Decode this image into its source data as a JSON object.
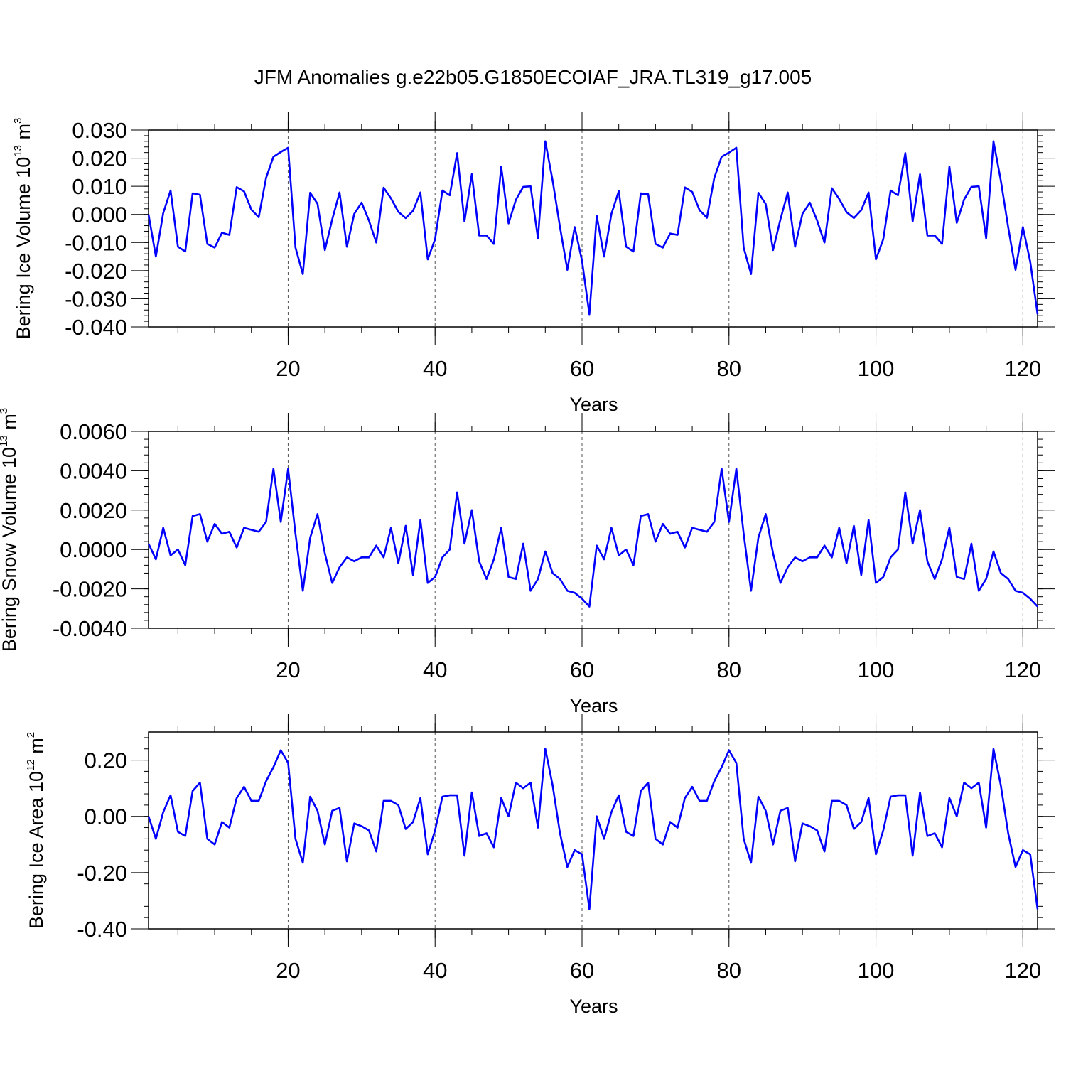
{
  "title": "JFM Anomalies g.e22b05.G1850ECOIAF_JRA.TL319_g17.005",
  "series_color": "#0000ff",
  "chart_data": [
    {
      "type": "line",
      "ylabel": "Bering Ice Volume 10",
      "ylabel_exp": "13",
      "ylabel_unit": " m",
      "ylabel_unit_exp": "3",
      "xlabel": "Years",
      "xlim": [
        1,
        122
      ],
      "ylim": [
        -0.04,
        0.03
      ],
      "yticks": [
        -0.04,
        -0.03,
        -0.02,
        -0.01,
        0.0,
        0.01,
        0.02,
        0.03
      ],
      "ytick_labels": [
        "-0.040",
        "-0.030",
        "-0.020",
        "-0.010",
        "0.000",
        "0.010",
        "0.020",
        "0.030"
      ],
      "xticks": [
        20,
        40,
        60,
        80,
        100,
        120
      ],
      "xtick_labels": [
        "20",
        "40",
        "60",
        "80",
        "100",
        "120"
      ],
      "grid": "vertical dashed at major x ticks",
      "values": [
        0.0,
        -0.015,
        0.0005,
        0.0085,
        -0.0115,
        -0.0132,
        0.0075,
        0.007,
        -0.0105,
        -0.0118,
        -0.0065,
        -0.0073,
        0.0097,
        0.0082,
        0.0017,
        -0.001,
        0.013,
        0.0205,
        0.0222,
        0.0237,
        -0.0118,
        -0.0212,
        0.0077,
        0.0038,
        -0.0127,
        -0.0018,
        0.0078,
        -0.0115,
        0.0002,
        0.0042,
        -0.0022,
        -0.01,
        0.0095,
        0.0057,
        0.0009,
        -0.0013,
        0.0013,
        0.0078,
        -0.016,
        -0.0088,
        0.0085,
        0.0068,
        0.0218,
        -0.0025,
        0.0143,
        -0.0075,
        -0.0075,
        -0.0105,
        0.017,
        -0.0032,
        0.0052,
        0.0098,
        0.01,
        -0.0085,
        0.026,
        0.012,
        -0.0045,
        -0.0197,
        -0.0045,
        -0.0165,
        -0.0355,
        -0.0005,
        -0.015,
        0.0002,
        0.0083,
        -0.0115,
        -0.0132,
        0.0075,
        0.0072,
        -0.0105,
        -0.0118,
        -0.0068,
        -0.0073,
        0.0096,
        0.008,
        0.0015,
        -0.0012,
        0.013,
        0.0205,
        0.022,
        0.0237,
        -0.0118,
        -0.0212,
        0.0077,
        0.0037,
        -0.0127,
        -0.0018,
        0.0078,
        -0.0115,
        0.0002,
        0.0042,
        -0.0022,
        -0.01,
        0.0093,
        0.0055,
        0.0008,
        -0.0013,
        0.0015,
        0.0078,
        -0.016,
        -0.0088,
        0.0085,
        0.0068,
        0.0218,
        -0.0025,
        0.0143,
        -0.0075,
        -0.0075,
        -0.0105,
        0.017,
        -0.003,
        0.0053,
        0.0098,
        0.01,
        -0.0085,
        0.026,
        0.012,
        -0.0045,
        -0.0197,
        -0.0045,
        -0.0168,
        -0.0355
      ]
    },
    {
      "type": "line",
      "ylabel": "Bering Snow Volume 10",
      "ylabel_exp": "13",
      "ylabel_unit": " m",
      "ylabel_unit_exp": "3",
      "xlabel": "Years",
      "xlim": [
        1,
        122
      ],
      "ylim": [
        -0.004,
        0.006
      ],
      "yticks": [
        -0.004,
        -0.002,
        0.0,
        0.002,
        0.004,
        0.006
      ],
      "ytick_labels": [
        "-0.0040",
        "-0.0020",
        "0.0000",
        "0.0020",
        "0.0040",
        "0.0060"
      ],
      "xticks": [
        20,
        40,
        60,
        80,
        100,
        120
      ],
      "xtick_labels": [
        "20",
        "40",
        "60",
        "80",
        "100",
        "120"
      ],
      "grid": "vertical dashed at major x ticks",
      "values": [
        0.0003,
        -0.0005,
        0.0011,
        -0.0003,
        0.0,
        -0.0008,
        0.0017,
        0.0018,
        0.0004,
        0.0013,
        0.0008,
        0.0009,
        0.0001,
        0.0011,
        0.001,
        0.0009,
        0.0014,
        0.0041,
        0.0014,
        0.0041,
        0.0008,
        -0.0021,
        0.0006,
        0.0018,
        -0.0002,
        -0.0017,
        -0.0009,
        -0.0004,
        -0.0006,
        -0.0004,
        -0.0004,
        0.0002,
        -0.0004,
        0.0011,
        -0.0007,
        0.0012,
        -0.0013,
        0.0015,
        -0.0017,
        -0.0014,
        -0.0004,
        0.0,
        0.0029,
        0.0003,
        0.002,
        -0.0006,
        -0.0015,
        -0.0005,
        0.0011,
        -0.0014,
        -0.0015,
        0.0003,
        -0.0021,
        -0.0015,
        -0.0001,
        -0.0012,
        -0.0015,
        -0.0021,
        -0.0022,
        -0.0025,
        -0.0029,
        0.0002,
        -0.0005,
        0.0011,
        -0.0003,
        0.0,
        -0.0008,
        0.0017,
        0.0018,
        0.0004,
        0.0013,
        0.0008,
        0.0009,
        0.0001,
        0.0011,
        0.001,
        0.0009,
        0.0014,
        0.0041,
        0.0014,
        0.0041,
        0.0008,
        -0.0021,
        0.0006,
        0.0018,
        -0.0002,
        -0.0017,
        -0.0009,
        -0.0004,
        -0.0006,
        -0.0004,
        -0.0004,
        0.0002,
        -0.0004,
        0.0011,
        -0.0007,
        0.0012,
        -0.0013,
        0.0015,
        -0.0017,
        -0.0014,
        -0.0004,
        0.0,
        0.0029,
        0.0003,
        0.002,
        -0.0006,
        -0.0015,
        -0.0005,
        0.0011,
        -0.0014,
        -0.0015,
        0.0003,
        -0.0021,
        -0.0015,
        -0.0001,
        -0.0012,
        -0.0015,
        -0.0021,
        -0.0022,
        -0.0025,
        -0.0029
      ]
    },
    {
      "type": "line",
      "ylabel": "Bering Ice Area 10",
      "ylabel_exp": "12",
      "ylabel_unit": " m",
      "ylabel_unit_exp": "2",
      "xlabel": "Years",
      "xlim": [
        1,
        122
      ],
      "ylim": [
        -0.4,
        0.3
      ],
      "yticks": [
        -0.4,
        -0.2,
        0.0,
        0.2
      ],
      "ytick_labels": [
        "-0.40",
        "-0.20",
        "0.00",
        "0.20"
      ],
      "xticks": [
        20,
        40,
        60,
        80,
        100,
        120
      ],
      "xtick_labels": [
        "20",
        "40",
        "60",
        "80",
        "100",
        "120"
      ],
      "grid": "vertical dashed at major x ticks",
      "values": [
        0.0,
        -0.08,
        0.015,
        0.075,
        -0.055,
        -0.07,
        0.09,
        0.12,
        -0.08,
        -0.1,
        -0.02,
        -0.04,
        0.065,
        0.105,
        0.055,
        0.055,
        0.125,
        0.175,
        0.235,
        0.19,
        -0.08,
        -0.165,
        0.07,
        0.02,
        -0.1,
        0.02,
        0.03,
        -0.16,
        -0.025,
        -0.035,
        -0.05,
        -0.125,
        0.055,
        0.055,
        0.04,
        -0.045,
        -0.02,
        0.065,
        -0.135,
        -0.05,
        0.07,
        0.075,
        0.075,
        -0.14,
        0.085,
        -0.07,
        -0.06,
        -0.11,
        0.065,
        0.0,
        0.12,
        0.1,
        0.12,
        -0.04,
        0.24,
        0.11,
        -0.06,
        -0.18,
        -0.12,
        -0.135,
        -0.33,
        0.0,
        -0.08,
        0.015,
        0.075,
        -0.055,
        -0.07,
        0.09,
        0.12,
        -0.08,
        -0.1,
        -0.02,
        -0.04,
        0.065,
        0.105,
        0.055,
        0.055,
        0.125,
        0.175,
        0.235,
        0.19,
        -0.08,
        -0.165,
        0.07,
        0.02,
        -0.1,
        0.02,
        0.03,
        -0.16,
        -0.025,
        -0.035,
        -0.05,
        -0.125,
        0.055,
        0.055,
        0.04,
        -0.045,
        -0.02,
        0.065,
        -0.135,
        -0.05,
        0.07,
        0.075,
        0.075,
        -0.14,
        0.085,
        -0.07,
        -0.06,
        -0.11,
        0.065,
        0.0,
        0.12,
        0.1,
        0.12,
        -0.04,
        0.24,
        0.11,
        -0.06,
        -0.18,
        -0.12,
        -0.135,
        -0.33
      ]
    }
  ]
}
